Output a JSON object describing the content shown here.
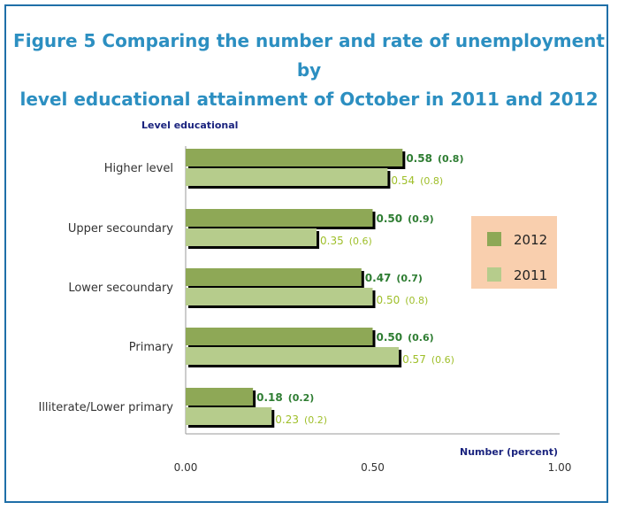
{
  "title_line1": "Figure 5  Comparing the number and rate of unemployment by",
  "title_line2": "level educational attainment of October in 2011 and 2012",
  "chart_data": {
    "type": "bar",
    "orientation": "horizontal",
    "ylabel": "Level educational",
    "xlabel": "Number (percent)",
    "xlim": [
      0,
      1.0
    ],
    "x_ticks": [
      "0.00",
      "0.50",
      "1.00"
    ],
    "categories": [
      "Higher level",
      "Upper secoundary",
      "Lower secoundary",
      "Primary",
      "Illiterate/Lower primary"
    ],
    "series": [
      {
        "name": "2012",
        "color": "#8ea856",
        "label_color": "#2e7d32",
        "values": [
          0.58,
          0.5,
          0.47,
          0.5,
          0.18
        ],
        "value_labels": [
          "0.58",
          "0.50",
          "0.47",
          "0.50",
          "0.18"
        ],
        "rate_labels": [
          "(0.8)",
          "(0.9)",
          "(0.7)",
          "(0.6)",
          "(0.2)"
        ]
      },
      {
        "name": "2011",
        "color": "#b6cc8c",
        "label_color": "#9fbf2a",
        "values": [
          0.54,
          0.35,
          0.5,
          0.57,
          0.23
        ],
        "value_labels": [
          "0.54",
          "0.35",
          "0.50",
          "0.57",
          "0.23"
        ],
        "rate_labels": [
          "(0.8)",
          "(0.6)",
          "(0.8)",
          "(0.6)",
          "(0.2)"
        ]
      }
    ],
    "legend_position": "right",
    "legend_background": "#f9cfae"
  }
}
